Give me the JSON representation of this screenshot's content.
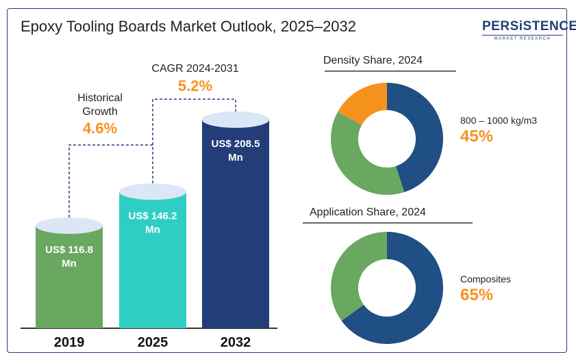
{
  "title": "Epoxy Tooling Boards Market Outlook, 2025–2032",
  "logo": {
    "main": "PERSiSTENCE",
    "sub": "MARKET RESEARCH"
  },
  "colors": {
    "green": "#6aa861",
    "teal": "#2fcec4",
    "navy": "#223d78",
    "orange": "#f5921e",
    "blue": "#1f4f84",
    "top": "#dbe7f7"
  },
  "chart_data": [
    {
      "type": "bar",
      "categories": [
        "2019",
        "2025",
        "2032"
      ],
      "values": [
        116.8,
        146.2,
        208.5
      ],
      "value_labels": [
        "US$ 116.8 Mn",
        "US$ 146.2 Mn",
        "US$ 208.5 Mn"
      ],
      "annotations": {
        "historical": {
          "label_line1": "Historical",
          "label_line2": "Growth",
          "value": "4.6%"
        },
        "cagr": {
          "label": "CAGR 2024-2031",
          "value": "5.2%"
        }
      }
    },
    {
      "type": "pie",
      "title": "Density Share, 2024",
      "slices": [
        {
          "value": 45,
          "color": "#1f4f84"
        },
        {
          "value": 38,
          "color": "#6aa861"
        },
        {
          "value": 17,
          "color": "#f5921e"
        }
      ],
      "highlight_label": "800 – 1000 kg/m3",
      "highlight_value": "45%"
    },
    {
      "type": "pie",
      "title": "Application Share, 2024",
      "slices": [
        {
          "value": 65,
          "color": "#1f4f84"
        },
        {
          "value": 35,
          "color": "#6aa861"
        }
      ],
      "highlight_label": "Composites",
      "highlight_value": "65%"
    }
  ]
}
